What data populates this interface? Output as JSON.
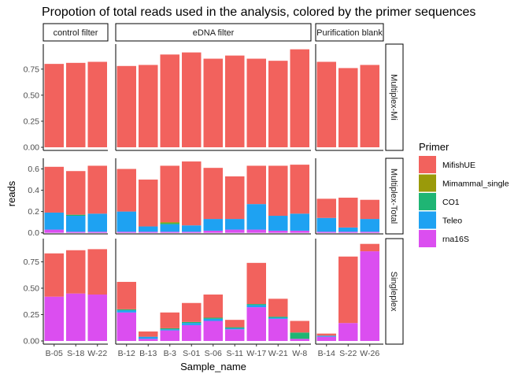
{
  "chart_data": {
    "type": "bar",
    "stacked": true,
    "title": "Propotion of total reads used in the analysis, colored by the primer sequences",
    "xlabel": "Sample_name",
    "ylabel": "reads",
    "legend": {
      "title": "Primer",
      "placement": "right",
      "entries": [
        "MifishUE",
        "Mimammal_single",
        "CO1",
        "Teleo",
        "rna16S"
      ]
    },
    "colors": {
      "MifishUE": "#F2625D",
      "Mimammal_single": "#9A9A0A",
      "CO1": "#1FB574",
      "Teleo": "#1EA2F2",
      "rna16S": "#DB4EF0"
    },
    "grid": false,
    "columns": [
      {
        "label": "control filter",
        "categories": [
          "B-05",
          "S-18",
          "W-22"
        ]
      },
      {
        "label": "eDNA filter",
        "categories": [
          "B-12",
          "B-13",
          "B-3",
          "S-01",
          "S-06",
          "S-11",
          "W-17",
          "W-21",
          "W-8"
        ]
      },
      {
        "label": "Purification blank",
        "categories": [
          "B-14",
          "S-22",
          "W-26"
        ]
      }
    ],
    "rows": [
      {
        "label": "Multiplex-Mi",
        "ylim": [
          -0.03,
          0.99
        ],
        "yticks": [
          0.0,
          0.25,
          0.5,
          0.75
        ],
        "tick_labels": [
          "0.00",
          "0.25",
          "0.50",
          "0.75"
        ],
        "stack_order": [
          "MifishUE"
        ],
        "values": {
          "MifishUE": [
            0.8,
            0.81,
            0.82,
            0.78,
            0.79,
            0.89,
            0.91,
            0.85,
            0.88,
            0.85,
            0.83,
            0.94,
            0.82,
            0.76,
            0.79
          ]
        }
      },
      {
        "label": "Multiplex-Total",
        "ylim": [
          -0.01,
          0.7
        ],
        "yticks": [
          0.0,
          0.2,
          0.4,
          0.6
        ],
        "tick_labels": [
          "0.0",
          "0.2",
          "0.4",
          "0.6"
        ],
        "stack_order": [
          "rna16S",
          "Teleo",
          "CO1",
          "Mimammal_single",
          "MifishUE"
        ],
        "values": {
          "rna16S": [
            0.03,
            0.01,
            0.01,
            0.01,
            0.01,
            0.01,
            0.01,
            0.02,
            0.03,
            0.03,
            0.02,
            0.02,
            0.01,
            0.01,
            0.01
          ],
          "Teleo": [
            0.16,
            0.15,
            0.17,
            0.19,
            0.05,
            0.07,
            0.06,
            0.11,
            0.1,
            0.24,
            0.14,
            0.16,
            0.13,
            0.04,
            0.12
          ],
          "CO1": [
            0.0,
            0.01,
            0.0,
            0.0,
            0.0,
            0.01,
            0.0,
            0.0,
            0.0,
            0.0,
            0.0,
            0.0,
            0.0,
            0.0,
            0.0
          ],
          "Mimammal_single": [
            0.0,
            0.0,
            0.0,
            0.0,
            0.0,
            0.01,
            0.0,
            0.0,
            0.0,
            0.0,
            0.0,
            0.0,
            0.0,
            0.0,
            0.0
          ],
          "MifishUE": [
            0.43,
            0.41,
            0.45,
            0.4,
            0.44,
            0.53,
            0.6,
            0.48,
            0.4,
            0.36,
            0.47,
            0.46,
            0.18,
            0.28,
            0.18
          ]
        }
      },
      {
        "label": "Singleplex",
        "ylim": [
          -0.03,
          0.97
        ],
        "yticks": [
          0.0,
          0.25,
          0.5,
          0.75
        ],
        "tick_labels": [
          "0.00",
          "0.25",
          "0.50",
          "0.75"
        ],
        "stack_order": [
          "rna16S",
          "Teleo",
          "CO1",
          "Mimammal_single",
          "MifishUE"
        ],
        "values": {
          "rna16S": [
            0.42,
            0.45,
            0.44,
            0.27,
            0.02,
            0.1,
            0.15,
            0.19,
            0.11,
            0.32,
            0.21,
            0.02,
            0.04,
            0.17,
            0.85
          ],
          "Teleo": [
            0.0,
            0.0,
            0.0,
            0.02,
            0.02,
            0.01,
            0.02,
            0.02,
            0.01,
            0.02,
            0.01,
            0.0,
            0.01,
            0.0,
            0.0
          ],
          "CO1": [
            0.0,
            0.0,
            0.0,
            0.01,
            0.0,
            0.01,
            0.01,
            0.01,
            0.01,
            0.01,
            0.01,
            0.06,
            0.0,
            0.0,
            0.0
          ],
          "Mimammal_single": [
            0.0,
            0.0,
            0.0,
            0.0,
            0.0,
            0.0,
            0.0,
            0.0,
            0.0,
            0.0,
            0.0,
            0.0,
            0.0,
            0.0,
            0.0
          ],
          "MifishUE": [
            0.41,
            0.41,
            0.43,
            0.26,
            0.05,
            0.15,
            0.18,
            0.22,
            0.07,
            0.39,
            0.17,
            0.11,
            0.02,
            0.63,
            0.07
          ]
        }
      }
    ]
  }
}
